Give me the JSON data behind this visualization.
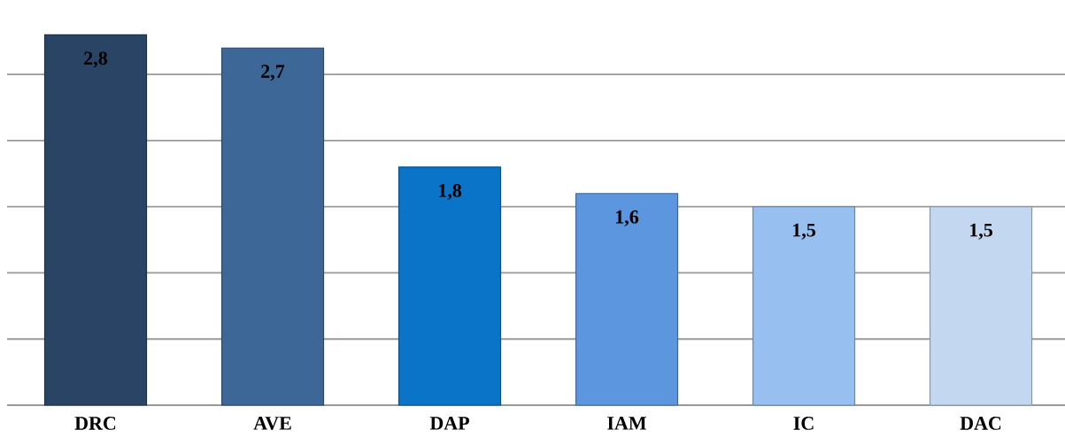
{
  "chart_data": {
    "type": "bar",
    "categories": [
      "DRC",
      "AVE",
      "DAP",
      "IAM",
      "IC",
      "DAC"
    ],
    "values": [
      2.8,
      2.7,
      1.8,
      1.6,
      1.5,
      1.5
    ],
    "colors": [
      "#2a4465",
      "#3d6797",
      "#0a74c9",
      "#5b96de",
      "#97bff0",
      "#c3d8f0"
    ],
    "value_labels": [
      "2,8",
      "2,7",
      "1,8",
      "1,6",
      "1,5",
      "1,5"
    ],
    "grid": "y",
    "tick_labels": "x"
  }
}
